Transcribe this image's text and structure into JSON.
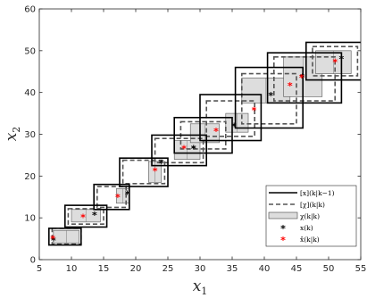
{
  "chart_data": {
    "type": "scatter",
    "xlabel": "x",
    "xlabel_sub": "1",
    "ylabel": "x",
    "ylabel_sub": "2",
    "xlim": [
      5,
      55
    ],
    "ylim": [
      0,
      60
    ],
    "xticks": [
      5,
      10,
      15,
      20,
      25,
      30,
      35,
      40,
      45,
      50,
      55
    ],
    "yticks": [
      0,
      10,
      20,
      30,
      40,
      50,
      60
    ],
    "grid": false,
    "legend_position": "bottom-right",
    "legend": [
      {
        "name": "[x](k|k−1)",
        "style": "solid-black-line"
      },
      {
        "name": "[χ](k|k)",
        "style": "dashed-gray-line"
      },
      {
        "name": "χ(k|k)",
        "style": "gray-filled-box"
      },
      {
        "name": "x(k)",
        "style": "black-asterisk"
      },
      {
        "name": "x̂(k|k)",
        "style": "red-asterisk"
      }
    ],
    "colors": {
      "predicted": "#000000",
      "dashed": "#555555",
      "fill": "#dddddd",
      "true": "#000000",
      "estimate": "#ff0000"
    },
    "steps": [
      {
        "pred": [
          6.5,
          11.5,
          3.5,
          7.5
        ],
        "cons": [
          7.0,
          11.5,
          3.7,
          7.5
        ],
        "zono": [
          7.2,
          11.2,
          4.0,
          7.0
        ],
        "true": [
          7.2,
          4.6
        ],
        "est": [
          7.1,
          5.0
        ]
      },
      {
        "pred": [
          9.0,
          15.5,
          7.8,
          13.0
        ],
        "cons": [
          9.5,
          15.0,
          8.5,
          12.2
        ],
        "zono": [
          10.0,
          14.5,
          9.0,
          12.0
        ],
        "true": [
          13.6,
          10.7
        ],
        "est": [
          11.8,
          10.1
        ]
      },
      {
        "pred": [
          13.5,
          19.0,
          12.0,
          18.0
        ],
        "cons": [
          14.0,
          18.5,
          12.5,
          17.5
        ],
        "zono": [
          17.0,
          19.0,
          13.5,
          17.0
        ],
        "true": [
          18.7,
          15.7
        ],
        "est": [
          17.2,
          15.0
        ]
      },
      {
        "pred": [
          17.5,
          25.0,
          17.5,
          24.3
        ],
        "cons": [
          18.0,
          24.5,
          18.2,
          23.8
        ],
        "zono": [
          22.0,
          24.0,
          18.5,
          23.5
        ],
        "true": [
          24.0,
          23.1
        ],
        "est": [
          23.0,
          21.2
        ]
      },
      {
        "pred": [
          22.5,
          31.0,
          22.5,
          29.8
        ],
        "cons": [
          23.0,
          30.5,
          23.2,
          29.0
        ],
        "zono": [
          26.0,
          30.0,
          24.0,
          28.5
        ],
        "true": [
          29.0,
          26.6
        ],
        "est": [
          27.5,
          26.6
        ]
      },
      {
        "pred": [
          26.0,
          35.0,
          25.5,
          34.0
        ],
        "cons": [
          27.0,
          34.0,
          26.5,
          33.0
        ],
        "zono": [
          28.5,
          33.0,
          28.0,
          32.5
        ],
        "true": [
          29.0,
          26.6
        ],
        "est": [
          32.5,
          30.7
        ]
      },
      {
        "pred": [
          30.0,
          39.5,
          28.5,
          39.5
        ],
        "cons": [
          31.0,
          38.5,
          29.5,
          38.0
        ],
        "zono": [
          34.0,
          37.5,
          30.5,
          35.0
        ],
        "true": [
          35.3,
          31.9
        ],
        "est": [
          38.4,
          35.8
        ]
      },
      {
        "pred": [
          35.5,
          46.0,
          31.5,
          46.0
        ],
        "cons": [
          36.5,
          45.0,
          32.5,
          44.5
        ],
        "zono": [
          36.5,
          44.0,
          37.5,
          43.5
        ],
        "true": [
          41.0,
          39.3
        ],
        "est": [
          44.0,
          41.6
        ]
      },
      {
        "pred": [
          40.5,
          52.0,
          37.5,
          49.5
        ],
        "cons": [
          41.5,
          51.0,
          38.0,
          48.5
        ],
        "zono": [
          43.0,
          49.0,
          39.0,
          48.5
        ],
        "true": [
          45.9,
          43.7
        ],
        "est": [
          45.8,
          43.6
        ]
      },
      {
        "pred": [
          46.5,
          55.5,
          43.0,
          52.0
        ],
        "cons": [
          47.5,
          54.5,
          44.0,
          51.0
        ],
        "zono": [
          48.0,
          53.5,
          44.5,
          50.0
        ],
        "true": [
          52.0,
          48.0
        ],
        "est": [
          51.0,
          47.3
        ]
      }
    ]
  }
}
